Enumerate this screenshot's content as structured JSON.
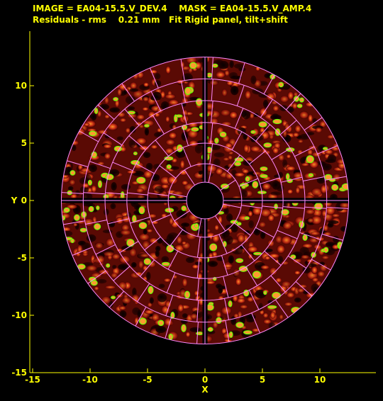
{
  "header": {
    "line1": "IMAGE = EA04-15.5.V_DEV.4    MASK = EA04-15.5.V_AMP.4",
    "line2": "Residuals - rms    0.21 mm   Fit Rigid panel, tilt+shift"
  },
  "axes": {
    "xlabel": "X",
    "ylabel": "Y",
    "xlim": [
      -15,
      15
    ],
    "ylim": [
      -15,
      15
    ],
    "xticks": [
      "-15",
      "-10",
      "-5",
      "0",
      "5",
      "10"
    ],
    "yticks": [
      "-15",
      "-10",
      "-5",
      "0",
      "5",
      "10"
    ]
  },
  "dish": {
    "outer_radius": 12.5,
    "inner_hole_radius": 1.6,
    "ring_radii": [
      3.2,
      5.0,
      6.8,
      8.7,
      10.6,
      12.5
    ],
    "ring_sectors": [
      8,
      12,
      16,
      20,
      24,
      28
    ],
    "beam_gap_halfwidth": 0.22
  },
  "colors": {
    "background": "#000000",
    "text": "#ffff00",
    "grid": "#ff88ff",
    "contour": "#66ff00"
  }
}
